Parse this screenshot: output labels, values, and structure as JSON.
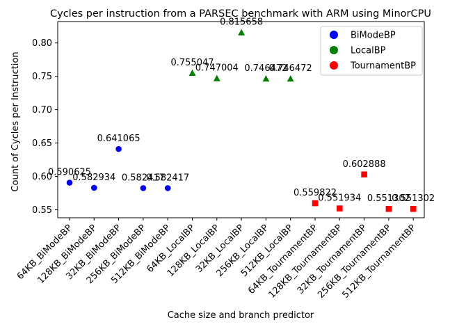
{
  "chart_data": {
    "type": "scatter",
    "title": "Cycles per instruction from a PARSEC benchmark with ARM using MinorCPU",
    "xlabel": "Cache size and branch predictor",
    "ylabel": "Count of Cycles per Instruction",
    "ylim": [
      0.538,
      0.832
    ],
    "yticks": [
      "0.55",
      "0.60",
      "0.65",
      "0.70",
      "0.75",
      "0.80"
    ],
    "grid": false,
    "legend_position": "top-right",
    "categories": [
      "64KB_BiModeBP",
      "128KB_BiModeBP",
      "32KB_BiModeBP",
      "256KB_BiModeBP",
      "512KB_BiModeBP",
      "64KB_LocalBP",
      "128KB_LocalBP",
      "32KB_LocalBP",
      "256KB_LocalBP",
      "512KB_LocalBP",
      "64KB_TournamentBP",
      "128KB_TournamentBP",
      "32KB_TournamentBP",
      "256KB_TournamentBP",
      "512KB_TournamentBP"
    ],
    "series": [
      {
        "name": "BiModeBP",
        "color": "#0000ff",
        "marker": "circle",
        "indices": [
          0,
          1,
          2,
          3,
          4
        ],
        "values": [
          0.590625,
          0.582934,
          0.641065,
          0.582417,
          0.582417
        ],
        "labels": [
          "0.590625",
          "0.582934",
          "0.641065",
          "0.582417",
          "0.582417"
        ]
      },
      {
        "name": "LocalBP",
        "color": "#008000",
        "marker": "triangle",
        "indices": [
          5,
          6,
          7,
          8,
          9
        ],
        "values": [
          0.755047,
          0.747004,
          0.815658,
          0.746472,
          0.746472
        ],
        "labels": [
          "0.755047",
          "0.747004",
          "0.815658",
          "0.746472",
          "0.746472"
        ]
      },
      {
        "name": "TournamentBP",
        "color": "#ff0000",
        "marker": "square",
        "indices": [
          10,
          11,
          12,
          13,
          14
        ],
        "values": [
          0.559822,
          0.551934,
          0.602888,
          0.551302,
          0.551302
        ],
        "labels": [
          "0.559822",
          "0.551934",
          "0.602888",
          "0.551302",
          "0.551302"
        ]
      }
    ]
  }
}
